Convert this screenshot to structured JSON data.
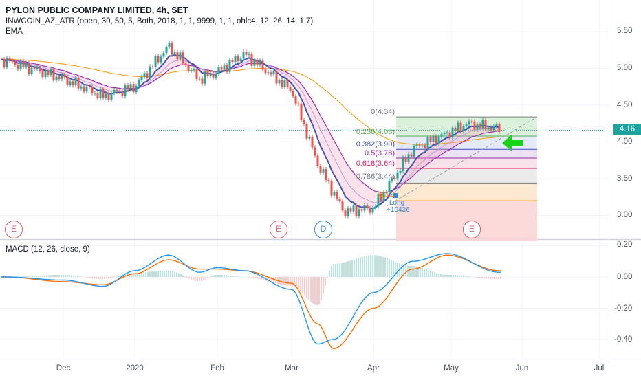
{
  "header": {
    "title": "PYLON PUBLIC COMPANY LIMITED, 4h, SET",
    "indicator1": "INWCOIN_AZ_ATR (open, 30, 50, 5, Both, 2018, 1, 1, 9999, 1, 1, ohlc4, 12, 26, 14, 1.7)",
    "indicator2": "EMA",
    "macd_label": "MACD (12, 26, close, 9)"
  },
  "price_axis": [
    "5.50",
    "5.00",
    "4.50",
    "4.00",
    "3.50",
    "3.00"
  ],
  "macd_axis": [
    "0.20",
    "0.00",
    "-0.20",
    "-0.40"
  ],
  "last_price": "4.16",
  "time_axis": [
    "Dec",
    "2020",
    "Feb",
    "Mar",
    "Apr",
    "May",
    "Jun",
    "Jul"
  ],
  "events": [
    "E",
    "E",
    "D",
    "E"
  ],
  "signal": {
    "label": "Long",
    "value": "+10436"
  },
  "fib_labels": [
    "0(4.34)",
    "0.236(4.08)",
    "0.382(3.90)",
    "0.5(3.78)",
    "0.618(3.64)",
    "0.786(3.44)",
    "1(3.2"
  ],
  "colors": {
    "up": "#26a69a",
    "down": "#ef5350",
    "ema_fast": "#3f51b5",
    "ema_mid": "#9c27b0",
    "ema_slow": "#ff9800",
    "macd": "#2196f3",
    "signal_line": "#ff6d00",
    "arrow": "#1bd11b"
  },
  "chart_data": [
    {
      "type": "candlestick",
      "title": "PYLON PUBLIC COMPANY LIMITED, 4h, SET",
      "ylim": [
        2.7,
        5.78
      ],
      "x": [
        "Dec",
        "2020",
        "Feb",
        "Mar",
        "Apr",
        "May",
        "Jun",
        "Jul"
      ],
      "close_path": [
        [
          "Nov",
          5.1
        ],
        [
          "Dec",
          4.86
        ],
        [
          "Dec",
          4.62
        ],
        [
          "2020",
          4.75
        ],
        [
          "2020",
          5.3
        ],
        [
          "Jan",
          4.85
        ],
        [
          "Feb",
          4.95
        ],
        [
          "Feb",
          5.2
        ],
        [
          "Mar",
          4.7
        ],
        [
          "Mar",
          3.7
        ],
        [
          "Mar",
          3.05
        ],
        [
          "Apr",
          3.1
        ],
        [
          "Apr",
          3.9
        ],
        [
          "May",
          4.25
        ],
        [
          "May",
          4.18
        ]
      ],
      "fibonacci": [
        {
          "level": 0,
          "price": 4.34
        },
        {
          "level": 0.236,
          "price": 4.08
        },
        {
          "level": 0.382,
          "price": 3.9
        },
        {
          "level": 0.5,
          "price": 3.78
        },
        {
          "level": 0.618,
          "price": 3.64
        },
        {
          "level": 0.786,
          "price": 3.44
        },
        {
          "level": 1,
          "price": 3.2
        }
      ],
      "last_price": 4.16
    },
    {
      "type": "line",
      "title": "MACD (12, 26, close, 9)",
      "ylim": [
        -0.48,
        0.22
      ],
      "series": [
        {
          "name": "MACD",
          "values": [
            0.0,
            -0.02,
            -0.06,
            0.04,
            0.14,
            0.03,
            0.06,
            0.04,
            -0.08,
            -0.43,
            -0.4,
            -0.1,
            0.1,
            0.15,
            0.03
          ]
        },
        {
          "name": "Signal",
          "values": [
            0.0,
            -0.03,
            -0.05,
            0.02,
            0.11,
            0.05,
            0.05,
            0.04,
            -0.04,
            -0.3,
            -0.46,
            -0.2,
            0.05,
            0.14,
            0.04
          ]
        }
      ]
    }
  ]
}
